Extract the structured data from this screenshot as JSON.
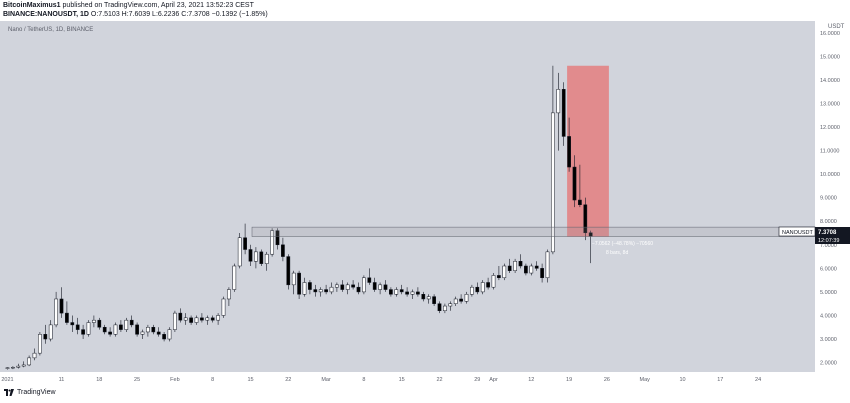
{
  "header": {
    "author": "BitcoinMaximus1",
    "published_text": "published on TradingView.com, April 23, 2021 13:52:23 CEST",
    "symbol_line": "BINANCE:NANOUSDT, 1D",
    "open_label": "O:",
    "open": "7.5103",
    "high_label": "H:",
    "high": "7.6039",
    "low_label": "L:",
    "low": "6.2236",
    "close_label": "C:",
    "close": "7.3708",
    "change": "−0.1392 (−1.85%)"
  },
  "chart_title": "Nano / TetherUS, 1D, BINANCE",
  "price_label": {
    "symbol": "NANOUSDT",
    "value": "7.3708",
    "countdown": "12:07:39"
  },
  "currency": "USDT",
  "measure": {
    "line1": "−7.0562 (−48.78%) −70560",
    "line2": "8 bars, 8d"
  },
  "colors": {
    "background": "#d1d4dc",
    "up": "#ffffff",
    "down": "#000000",
    "zone": "#e57373"
  },
  "footer": {
    "brand": "TradingView"
  },
  "chart_data": {
    "type": "candlestick",
    "x_ticks": [
      {
        "i": 0,
        "label": "2021"
      },
      {
        "i": 10,
        "label": "11"
      },
      {
        "i": 17,
        "label": "18"
      },
      {
        "i": 24,
        "label": "25"
      },
      {
        "i": 31,
        "label": "Feb"
      },
      {
        "i": 38,
        "label": "8"
      },
      {
        "i": 45,
        "label": "15"
      },
      {
        "i": 52,
        "label": "22"
      },
      {
        "i": 59,
        "label": "Mar"
      },
      {
        "i": 66,
        "label": "8"
      },
      {
        "i": 73,
        "label": "15"
      },
      {
        "i": 80,
        "label": "22"
      },
      {
        "i": 87,
        "label": "29"
      },
      {
        "i": 90,
        "label": "Apr"
      },
      {
        "i": 97,
        "label": "12"
      },
      {
        "i": 104,
        "label": "19"
      },
      {
        "i": 111,
        "label": "26"
      },
      {
        "i": 118,
        "label": "May"
      },
      {
        "i": 125,
        "label": "10"
      },
      {
        "i": 132,
        "label": "17"
      },
      {
        "i": 139,
        "label": "24"
      }
    ],
    "y_ticks": [
      "2.0000",
      "3.0000",
      "4.0000",
      "5.0000",
      "6.0000",
      "7.0000",
      "8.0000",
      "9.0000",
      "10.0000",
      "11.0000",
      "12.0000",
      "13.0000",
      "14.0000",
      "15.0000",
      "16.0000"
    ],
    "ylim": [
      1.6,
      16.5
    ],
    "support_zone": [
      7.35,
      7.75
    ],
    "resistance_box": {
      "from_index": 104,
      "to_index": 111,
      "low": 7.35,
      "high": 14.6
    },
    "candles": [
      [
        1.75,
        1.8,
        1.7,
        1.78
      ],
      [
        1.78,
        1.85,
        1.72,
        1.8
      ],
      [
        1.8,
        1.95,
        1.75,
        1.85
      ],
      [
        1.85,
        2.05,
        1.8,
        1.9
      ],
      [
        1.9,
        2.3,
        1.85,
        2.2
      ],
      [
        2.2,
        2.6,
        2.1,
        2.4
      ],
      [
        2.4,
        3.3,
        2.3,
        3.2
      ],
      [
        3.2,
        3.6,
        2.8,
        3.0
      ],
      [
        3.0,
        3.8,
        2.9,
        3.6
      ],
      [
        3.6,
        5.0,
        3.5,
        4.7
      ],
      [
        4.7,
        5.2,
        3.9,
        4.1
      ],
      [
        4.1,
        4.6,
        3.6,
        3.7
      ],
      [
        3.7,
        4.0,
        3.3,
        3.6
      ],
      [
        3.6,
        3.9,
        3.2,
        3.4
      ],
      [
        3.4,
        3.6,
        3.0,
        3.2
      ],
      [
        3.2,
        3.8,
        3.1,
        3.7
      ],
      [
        3.7,
        4.0,
        3.5,
        3.8
      ],
      [
        3.8,
        3.9,
        3.4,
        3.5
      ],
      [
        3.5,
        3.6,
        3.2,
        3.3
      ],
      [
        3.3,
        3.5,
        3.1,
        3.2
      ],
      [
        3.2,
        3.7,
        3.1,
        3.6
      ],
      [
        3.6,
        3.8,
        3.3,
        3.4
      ],
      [
        3.4,
        3.9,
        3.3,
        3.8
      ],
      [
        3.8,
        4.0,
        3.5,
        3.6
      ],
      [
        3.6,
        3.7,
        3.1,
        3.2
      ],
      [
        3.2,
        3.4,
        3.0,
        3.3
      ],
      [
        3.3,
        3.6,
        3.1,
        3.5
      ],
      [
        3.5,
        3.6,
        3.2,
        3.3
      ],
      [
        3.3,
        3.5,
        3.1,
        3.2
      ],
      [
        3.2,
        3.3,
        2.9,
        3.0
      ],
      [
        3.0,
        3.5,
        2.9,
        3.4
      ],
      [
        3.4,
        4.2,
        3.3,
        4.1
      ],
      [
        4.1,
        4.3,
        3.7,
        3.8
      ],
      [
        3.8,
        4.1,
        3.6,
        3.9
      ],
      [
        3.9,
        4.0,
        3.6,
        3.7
      ],
      [
        3.7,
        4.0,
        3.6,
        3.9
      ],
      [
        3.9,
        4.1,
        3.7,
        3.8
      ],
      [
        3.8,
        4.0,
        3.6,
        3.9
      ],
      [
        3.9,
        4.0,
        3.7,
        3.8
      ],
      [
        3.8,
        4.1,
        3.6,
        4.0
      ],
      [
        4.0,
        4.8,
        3.9,
        4.7
      ],
      [
        4.7,
        5.2,
        4.4,
        5.1
      ],
      [
        5.1,
        6.2,
        5.0,
        6.1
      ],
      [
        6.1,
        7.5,
        6.0,
        7.3
      ],
      [
        7.3,
        7.9,
        6.6,
        6.8
      ],
      [
        6.8,
        7.0,
        6.1,
        6.3
      ],
      [
        6.3,
        6.9,
        6.0,
        6.7
      ],
      [
        6.7,
        6.8,
        6.1,
        6.2
      ],
      [
        6.2,
        6.7,
        5.9,
        6.6
      ],
      [
        6.6,
        7.7,
        6.5,
        7.6
      ],
      [
        7.6,
        7.7,
        6.8,
        7.0
      ],
      [
        7.0,
        7.3,
        6.3,
        6.5
      ],
      [
        6.5,
        6.6,
        5.1,
        5.3
      ],
      [
        5.3,
        5.9,
        4.9,
        5.8
      ],
      [
        5.8,
        5.9,
        4.7,
        4.9
      ],
      [
        4.9,
        5.6,
        4.8,
        5.4
      ],
      [
        5.4,
        5.5,
        4.9,
        5.1
      ],
      [
        5.1,
        5.3,
        4.8,
        5.0
      ],
      [
        5.0,
        5.2,
        4.8,
        5.1
      ],
      [
        5.1,
        5.3,
        4.9,
        5.0
      ],
      [
        5.0,
        5.4,
        4.9,
        5.2
      ],
      [
        5.2,
        5.4,
        5.0,
        5.3
      ],
      [
        5.3,
        5.5,
        5.0,
        5.1
      ],
      [
        5.1,
        5.4,
        4.9,
        5.3
      ],
      [
        5.3,
        5.5,
        5.1,
        5.2
      ],
      [
        5.2,
        5.4,
        4.9,
        5.0
      ],
      [
        5.0,
        5.7,
        4.9,
        5.6
      ],
      [
        5.6,
        6.0,
        5.3,
        5.4
      ],
      [
        5.4,
        5.6,
        5.0,
        5.1
      ],
      [
        5.1,
        5.4,
        4.9,
        5.3
      ],
      [
        5.3,
        5.5,
        5.0,
        5.1
      ],
      [
        5.1,
        5.2,
        4.8,
        4.9
      ],
      [
        4.9,
        5.2,
        4.8,
        5.1
      ],
      [
        5.1,
        5.3,
        4.9,
        5.0
      ],
      [
        5.0,
        5.2,
        4.8,
        4.9
      ],
      [
        4.9,
        5.1,
        4.7,
        5.0
      ],
      [
        5.0,
        5.2,
        4.8,
        4.9
      ],
      [
        4.9,
        5.0,
        4.6,
        4.7
      ],
      [
        4.7,
        4.9,
        4.5,
        4.8
      ],
      [
        4.8,
        4.9,
        4.4,
        4.5
      ],
      [
        4.5,
        4.6,
        4.1,
        4.2
      ],
      [
        4.2,
        4.5,
        4.1,
        4.4
      ],
      [
        4.4,
        4.6,
        4.2,
        4.5
      ],
      [
        4.5,
        4.8,
        4.4,
        4.7
      ],
      [
        4.7,
        4.9,
        4.5,
        4.6
      ],
      [
        4.6,
        5.0,
        4.5,
        4.9
      ],
      [
        4.9,
        5.3,
        4.8,
        5.2
      ],
      [
        5.2,
        5.4,
        4.9,
        5.0
      ],
      [
        5.0,
        5.5,
        4.9,
        5.4
      ],
      [
        5.4,
        5.6,
        5.1,
        5.2
      ],
      [
        5.2,
        5.8,
        5.1,
        5.7
      ],
      [
        5.7,
        6.1,
        5.5,
        5.6
      ],
      [
        5.6,
        6.2,
        5.5,
        6.1
      ],
      [
        6.1,
        6.4,
        5.8,
        5.9
      ],
      [
        5.9,
        6.4,
        5.8,
        6.3
      ],
      [
        6.3,
        6.6,
        6.0,
        6.1
      ],
      [
        6.1,
        6.2,
        5.7,
        5.8
      ],
      [
        5.8,
        6.2,
        5.7,
        6.1
      ],
      [
        6.1,
        6.3,
        5.9,
        6.0
      ],
      [
        6.0,
        6.2,
        5.4,
        5.6
      ],
      [
        5.6,
        6.8,
        5.4,
        6.7
      ],
      [
        6.7,
        14.6,
        6.6,
        12.6
      ],
      [
        12.6,
        14.3,
        11.0,
        13.6
      ],
      [
        13.6,
        13.9,
        11.2,
        11.6
      ],
      [
        11.6,
        12.4,
        10.1,
        10.3
      ],
      [
        10.3,
        10.8,
        8.6,
        8.9
      ],
      [
        8.9,
        10.4,
        8.6,
        8.7
      ],
      [
        8.7,
        9.0,
        7.2,
        7.51
      ],
      [
        7.51,
        7.6,
        6.22,
        7.37
      ]
    ]
  }
}
